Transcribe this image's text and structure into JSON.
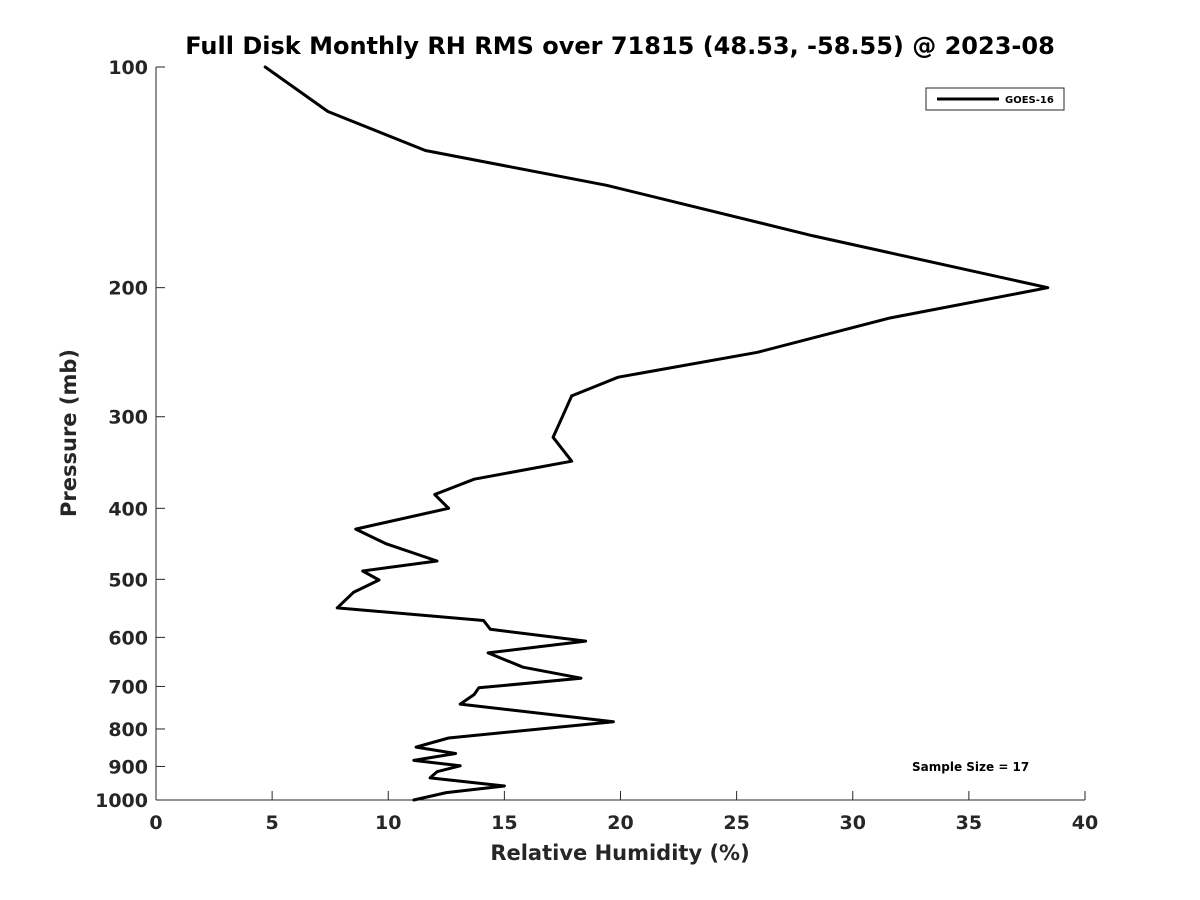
{
  "chart_data": {
    "type": "line",
    "title": "Full Disk Monthly RH RMS over 71815 (48.53, -58.55) @ 2023-08",
    "xlabel": "Relative Humidity (%)",
    "ylabel": "Pressure (mb)",
    "xlim": [
      0,
      40
    ],
    "ylim": [
      100,
      1000
    ],
    "y_scale": "log",
    "y_reversed": true,
    "x_ticks": [
      0,
      5,
      10,
      15,
      20,
      25,
      30,
      35,
      40
    ],
    "x_tick_labels": [
      "0",
      "5",
      "10",
      "15",
      "20",
      "25",
      "30",
      "35",
      "40"
    ],
    "y_ticks": [
      100,
      200,
      300,
      400,
      500,
      600,
      700,
      800,
      900,
      1000
    ],
    "y_tick_labels": [
      "100",
      "200",
      "300",
      "400",
      "500",
      "600",
      "700",
      "800",
      "900",
      "1000"
    ],
    "grid": false,
    "legend_position": "top-right",
    "annotation": "Sample Size = 17",
    "line_color": "#000000",
    "series": [
      {
        "name": "GOES-16",
        "x": [
          4.7,
          7.4,
          11.6,
          19.4,
          28.3,
          38.4,
          31.6,
          25.9,
          19.9,
          17.9,
          17.5,
          17.1,
          17.9,
          13.7,
          12.0,
          12.6,
          8.6,
          9.9,
          12.1,
          8.9,
          9.6,
          8.5,
          7.8,
          14.1,
          14.4,
          18.5,
          14.3,
          15.8,
          18.3,
          13.9,
          13.7,
          13.1,
          19.7,
          12.6,
          11.2,
          12.9,
          11.1,
          13.1,
          12.1,
          11.8,
          15.0,
          12.5,
          11.1
        ],
        "y": [
          100,
          115,
          130,
          145,
          170,
          200,
          220,
          245,
          265,
          281,
          300,
          320,
          345,
          365,
          383,
          400,
          427,
          447,
          472,
          487,
          501,
          521,
          547,
          569,
          585,
          607,
          630,
          659,
          682,
          703,
          718,
          740,
          782,
          823,
          847,
          864,
          883,
          898,
          915,
          933,
          957,
          977,
          1000
        ]
      }
    ]
  }
}
